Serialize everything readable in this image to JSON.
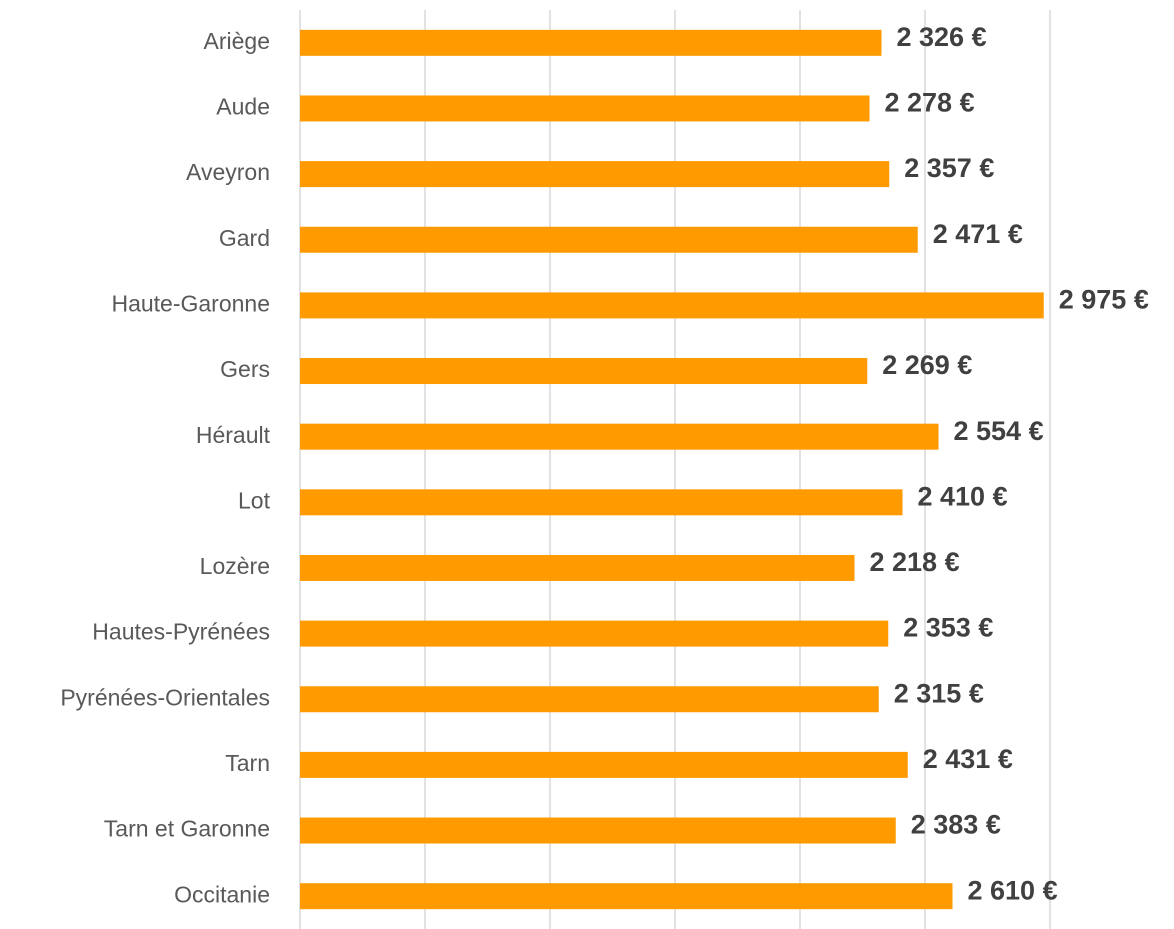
{
  "chart_data": {
    "type": "bar",
    "orientation": "horizontal",
    "categories": [
      "Ariège",
      "Aude",
      "Aveyron",
      "Gard",
      "Haute-Garonne",
      "Gers",
      "Hérault",
      "Lot",
      "Lozère",
      "Hautes-Pyrénées",
      "Pyrénées-Orientales",
      "Tarn",
      "Tarn et Garonne",
      "Occitanie"
    ],
    "values": [
      2326,
      2278,
      2357,
      2471,
      2975,
      2269,
      2554,
      2410,
      2218,
      2353,
      2315,
      2431,
      2383,
      2610
    ],
    "value_labels": [
      "2 326 €",
      "2 278 €",
      "2 357 €",
      "2 471 €",
      "2 975 €",
      "2 269 €",
      "2 554 €",
      "2 410 €",
      "2 218 €",
      "2 353 €",
      "2 315 €",
      "2 431 €",
      "2 383 €",
      "2 610 €"
    ],
    "color": "#ff9a00",
    "xlim": [
      0,
      3000
    ],
    "xticks": [
      0,
      500,
      1000,
      1500,
      2000,
      2500,
      3000
    ],
    "grid": true
  }
}
